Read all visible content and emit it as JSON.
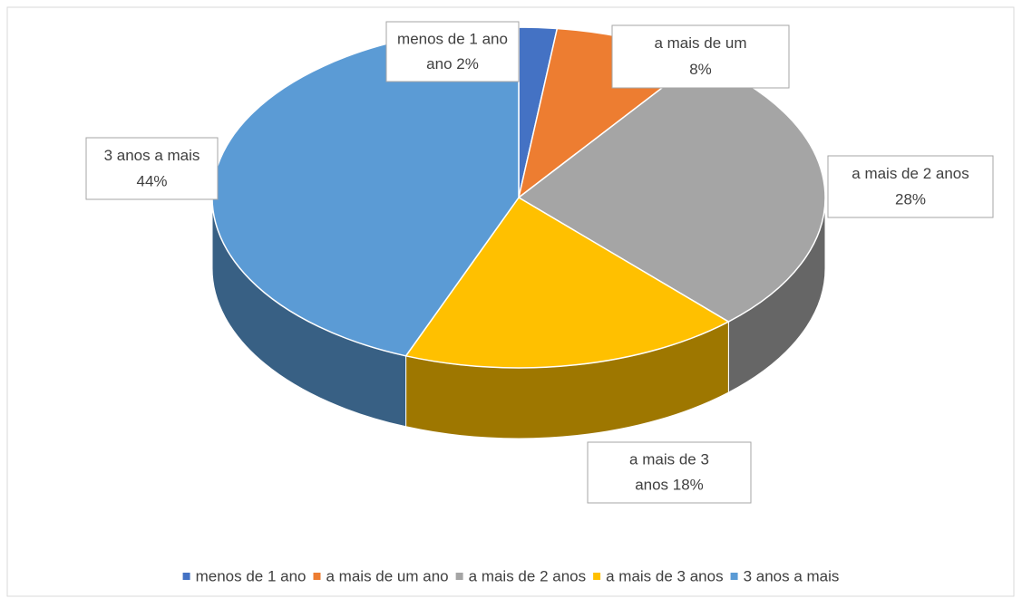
{
  "chart_data": {
    "type": "pie",
    "categories": [
      "menos de 1 ano",
      "a mais de um ano",
      "a mais de 2 anos",
      "a mais de 3 anos",
      "3 anos a mais"
    ],
    "values": [
      2,
      8,
      28,
      18,
      44
    ],
    "label_names": [
      "menos de 1 ano",
      "a mais de um",
      "a mais de 2 anos",
      "a mais de 3",
      "3 anos a mais"
    ],
    "value_labels": [
      "ano 2%",
      "8%",
      "28%",
      "anos 18%",
      "44%"
    ],
    "colors": [
      "#4472c4",
      "#ed7d31",
      "#a5a5a5",
      "#ffc000",
      "#5b9bd5"
    ],
    "legend": "bottom"
  }
}
